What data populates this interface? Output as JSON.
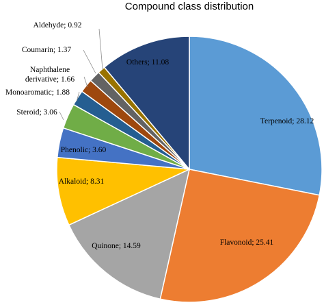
{
  "chart_data": {
    "type": "pie",
    "title": "Compound class distribution",
    "slices": [
      {
        "label": "Terpenoid",
        "value": 28.12,
        "color": "#5b9bd5"
      },
      {
        "label": "Flavonoid",
        "value": 25.41,
        "color": "#ed7d31"
      },
      {
        "label": "Quinone",
        "value": 14.59,
        "color": "#a5a5a5"
      },
      {
        "label": "Alkaloid",
        "value": 8.31,
        "color": "#ffc000"
      },
      {
        "label": "Phenolic",
        "value": 3.6,
        "color": "#4472c4"
      },
      {
        "label": "Steroid",
        "value": 3.06,
        "color": "#70ad47"
      },
      {
        "label": "Monoaromatic",
        "value": 1.88,
        "color": "#255e91"
      },
      {
        "label": "Naphthalene derivative",
        "value": 1.66,
        "color": "#9e480e"
      },
      {
        "label": "Coumarin",
        "value": 1.37,
        "color": "#636363"
      },
      {
        "label": "Aldehyde",
        "value": 0.92,
        "color": "#997300"
      },
      {
        "label": "Others",
        "value": 11.08,
        "color": "#264478"
      }
    ],
    "data_labels": [
      "Terpenoid; 28.12",
      "Flavonoid; 25.41",
      "Quinone; 14.59",
      "Alkaloid; 8.31",
      "Phenolic; 3.60",
      "Steroid; 3.06",
      "Monoaromatic; 1.88",
      [
        "Naphthalene",
        "derivative; 1.66"
      ],
      "Coumarin; 1.37",
      "Aldehyde; 0.92",
      "Others; 11.08"
    ]
  }
}
